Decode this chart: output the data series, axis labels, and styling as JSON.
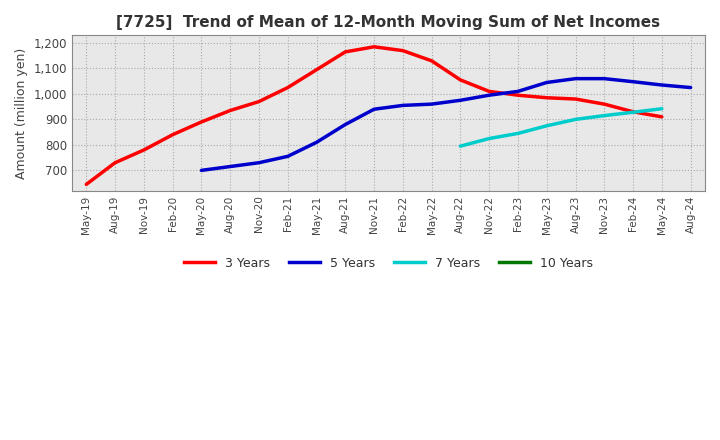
{
  "title": "[7725]  Trend of Mean of 12-Month Moving Sum of Net Incomes",
  "ylabel": "Amount (million yen)",
  "ylim": [
    620,
    1230
  ],
  "yticks": [
    700,
    800,
    900,
    1000,
    1100,
    1200
  ],
  "background_color": "#ffffff",
  "plot_bg_color": "#e8e8e8",
  "grid_color": "#aaaaaa",
  "x_labels": [
    "May-19",
    "Aug-19",
    "Nov-19",
    "Feb-20",
    "May-20",
    "Aug-20",
    "Nov-20",
    "Feb-21",
    "May-21",
    "Aug-21",
    "Nov-21",
    "Feb-22",
    "May-22",
    "Aug-22",
    "Nov-22",
    "Feb-23",
    "May-23",
    "Aug-23",
    "Nov-23",
    "Feb-24",
    "May-24",
    "Aug-24"
  ],
  "series_3y": {
    "color": "#ff0000",
    "x": [
      0,
      1,
      2,
      3,
      4,
      5,
      6,
      7,
      8,
      9,
      10,
      11,
      12,
      13,
      14,
      15,
      16,
      17,
      18,
      19,
      20
    ],
    "y": [
      645,
      730,
      780,
      840,
      890,
      935,
      970,
      1025,
      1095,
      1165,
      1185,
      1170,
      1130,
      1055,
      1010,
      995,
      985,
      980,
      960,
      930,
      910
    ]
  },
  "series_5y": {
    "color": "#0000cc",
    "x": [
      4,
      5,
      6,
      7,
      8,
      9,
      10,
      11,
      12,
      13,
      14,
      15,
      16,
      17,
      18,
      19,
      20,
      21
    ],
    "y": [
      700,
      715,
      730,
      755,
      810,
      880,
      940,
      955,
      960,
      975,
      995,
      1010,
      1045,
      1060,
      1060,
      1048,
      1035,
      1025
    ]
  },
  "series_7y": {
    "color": "#00cccc",
    "x": [
      13,
      14,
      15,
      16,
      17,
      18,
      19,
      20
    ],
    "y": [
      795,
      825,
      845,
      875,
      900,
      915,
      928,
      942
    ]
  },
  "series_10y": {
    "color": "#007700",
    "x": [],
    "y": []
  },
  "legend_labels": [
    "3 Years",
    "5 Years",
    "7 Years",
    "10 Years"
  ],
  "legend_colors": [
    "#ff0000",
    "#0000cc",
    "#00cccc",
    "#007700"
  ]
}
